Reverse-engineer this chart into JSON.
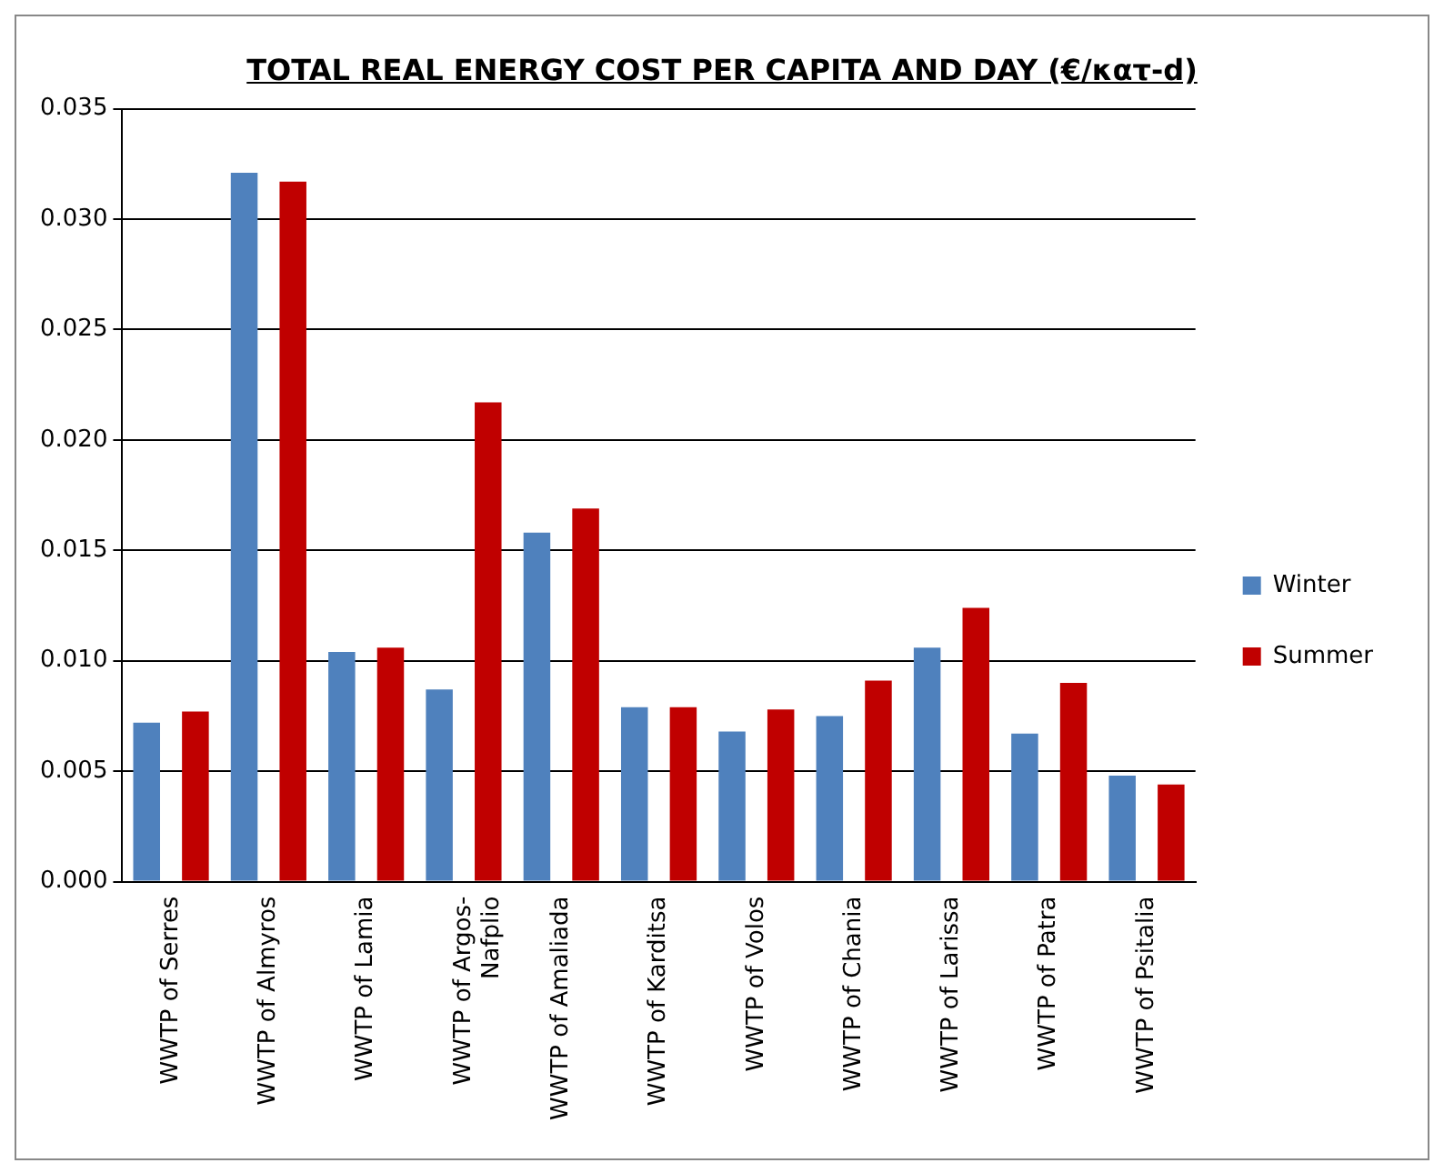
{
  "chart_data": {
    "type": "bar",
    "title": "TOTAL REAL ENERGY COST PER CAPITA AND DAY (€/κατ-d)",
    "categories": [
      "WWTP of Serres",
      "WWTP of Almyros",
      "WWTP of Lamia",
      "WWTP of Argos-\nNafplio",
      "WWTP of Amaliada",
      "WWTP of Karditsa",
      "WWTP of Volos",
      "WWTP of Chania",
      "WWTP of Larissa",
      "WWTP of Patra",
      "WWTP of Psitalia"
    ],
    "series": [
      {
        "name": "Winter",
        "color": "#4f81bd",
        "values": [
          0.0072,
          0.0321,
          0.0104,
          0.0087,
          0.0158,
          0.0079,
          0.0068,
          0.0075,
          0.0106,
          0.0067,
          0.0048
        ]
      },
      {
        "name": "Summer",
        "color": "#c00000",
        "values": [
          0.0077,
          0.0317,
          0.0106,
          0.0217,
          0.0169,
          0.0079,
          0.0078,
          0.0091,
          0.0124,
          0.009,
          0.0044
        ]
      }
    ],
    "ylim": [
      0,
      0.035
    ],
    "yticks": [
      {
        "value": 0,
        "label": "0.000"
      },
      {
        "value": 0.005,
        "label": "0.005"
      },
      {
        "value": 0.01,
        "label": "0.010"
      },
      {
        "value": 0.015,
        "label": "0.015"
      },
      {
        "value": 0.02,
        "label": "0.020"
      },
      {
        "value": 0.025,
        "label": "0.025"
      },
      {
        "value": 0.03,
        "label": "0.030"
      },
      {
        "value": 0.035,
        "label": "0.035"
      }
    ],
    "grid": "y",
    "legend": "right"
  }
}
